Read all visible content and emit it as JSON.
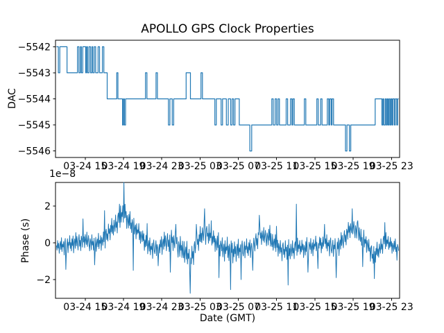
{
  "colors": {
    "line": "#1f77b4",
    "text": "#000000",
    "background": "#ffffff"
  },
  "chart_data": [
    {
      "type": "line",
      "draw_style": "steps-post",
      "title": "APOLLO GPS Clock Properties",
      "ylabel": "DAC",
      "xlabel": "",
      "x_unit": "hours since 03-24 00:00 GMT",
      "xlim": [
        11.9,
        47.85
      ],
      "ylim": [
        -5546.25,
        -5541.75
      ],
      "grid": false,
      "legend": false,
      "y_ticks": [
        -5542,
        -5543,
        -5544,
        -5545,
        -5546
      ],
      "y_ticklabels": [
        "−5542",
        "−5543",
        "−5544",
        "−5545",
        "−5546"
      ],
      "x_ticks": [
        [
          15,
          "03-24 15"
        ],
        [
          19,
          "03-24 19"
        ],
        [
          23,
          "03-24 23"
        ],
        [
          27,
          "03-25 03"
        ],
        [
          31,
          "03-25 07"
        ],
        [
          35,
          "03-25 11"
        ],
        [
          39,
          "03-25 15"
        ],
        [
          43,
          "03-25 19"
        ],
        [
          47,
          "03-25 23"
        ]
      ],
      "x_end": 47.75,
      "steps": [
        [
          12.0,
          -5542
        ],
        [
          12.2,
          -5543
        ],
        [
          12.35,
          -5542
        ],
        [
          13.1,
          -5543
        ],
        [
          14.2,
          -5542
        ],
        [
          14.35,
          -5543
        ],
        [
          14.5,
          -5542
        ],
        [
          14.6,
          -5543
        ],
        [
          14.75,
          -5542
        ],
        [
          15.05,
          -5543
        ],
        [
          15.15,
          -5542
        ],
        [
          15.25,
          -5543
        ],
        [
          15.4,
          -5542
        ],
        [
          15.55,
          -5543
        ],
        [
          15.7,
          -5542
        ],
        [
          15.8,
          -5543
        ],
        [
          15.95,
          -5542
        ],
        [
          16.1,
          -5543
        ],
        [
          16.35,
          -5542
        ],
        [
          16.5,
          -5543
        ],
        [
          16.8,
          -5542
        ],
        [
          16.95,
          -5543
        ],
        [
          17.3,
          -5544
        ],
        [
          18.3,
          -5543
        ],
        [
          18.42,
          -5544
        ],
        [
          18.9,
          -5545
        ],
        [
          19.0,
          -5544
        ],
        [
          19.1,
          -5545
        ],
        [
          19.22,
          -5544
        ],
        [
          21.3,
          -5543
        ],
        [
          21.45,
          -5544
        ],
        [
          22.4,
          -5543
        ],
        [
          22.55,
          -5544
        ],
        [
          23.7,
          -5545
        ],
        [
          23.85,
          -5544
        ],
        [
          24.1,
          -5545
        ],
        [
          24.25,
          -5544
        ],
        [
          25.55,
          -5543
        ],
        [
          26.0,
          -5544
        ],
        [
          27.1,
          -5543
        ],
        [
          27.25,
          -5544
        ],
        [
          28.55,
          -5545
        ],
        [
          28.7,
          -5544
        ],
        [
          29.2,
          -5545
        ],
        [
          29.35,
          -5544
        ],
        [
          29.75,
          -5545
        ],
        [
          29.95,
          -5544
        ],
        [
          30.2,
          -5545
        ],
        [
          30.35,
          -5544
        ],
        [
          30.5,
          -5545
        ],
        [
          30.65,
          -5544
        ],
        [
          31.1,
          -5545
        ],
        [
          32.2,
          -5546
        ],
        [
          32.4,
          -5545
        ],
        [
          34.5,
          -5544
        ],
        [
          34.65,
          -5545
        ],
        [
          34.85,
          -5544
        ],
        [
          35.0,
          -5545
        ],
        [
          35.15,
          -5544
        ],
        [
          35.3,
          -5545
        ],
        [
          36.0,
          -5544
        ],
        [
          36.15,
          -5545
        ],
        [
          36.45,
          -5544
        ],
        [
          36.6,
          -5545
        ],
        [
          36.7,
          -5544
        ],
        [
          36.85,
          -5545
        ],
        [
          37.9,
          -5544
        ],
        [
          38.05,
          -5545
        ],
        [
          39.2,
          -5544
        ],
        [
          39.35,
          -5545
        ],
        [
          39.6,
          -5544
        ],
        [
          39.75,
          -5545
        ],
        [
          40.3,
          -5544
        ],
        [
          40.45,
          -5545
        ],
        [
          40.55,
          -5544
        ],
        [
          40.7,
          -5545
        ],
        [
          40.8,
          -5544
        ],
        [
          40.95,
          -5545
        ],
        [
          42.2,
          -5546
        ],
        [
          42.35,
          -5545
        ],
        [
          42.6,
          -5546
        ],
        [
          42.75,
          -5545
        ],
        [
          45.3,
          -5544
        ],
        [
          46.0,
          -5545
        ],
        [
          46.1,
          -5544
        ],
        [
          46.2,
          -5545
        ],
        [
          46.35,
          -5544
        ],
        [
          46.45,
          -5545
        ],
        [
          46.55,
          -5544
        ],
        [
          46.65,
          -5545
        ],
        [
          46.75,
          -5544
        ],
        [
          46.85,
          -5545
        ],
        [
          46.95,
          -5544
        ],
        [
          47.05,
          -5545
        ],
        [
          47.15,
          -5544
        ],
        [
          47.3,
          -5545
        ],
        [
          47.4,
          -5544
        ],
        [
          47.55,
          -5545
        ],
        [
          47.65,
          -5544
        ],
        [
          47.75,
          -5544
        ]
      ]
    },
    {
      "type": "line",
      "ylabel": "Phase (s)",
      "xlabel": "Date (GMT)",
      "offset_text": "1e−8",
      "y_scale": "1e-8 s",
      "xlim": [
        11.9,
        47.85
      ],
      "ylim": [
        -3.02,
        3.28
      ],
      "grid": false,
      "legend": false,
      "y_ticks": [
        -2,
        0,
        2
      ],
      "y_ticklabels": [
        "−2",
        "0",
        "2"
      ],
      "x_ticks": [
        [
          15,
          "03-24 15"
        ],
        [
          19,
          "03-24 19"
        ],
        [
          23,
          "03-24 23"
        ],
        [
          27,
          "03-25 03"
        ],
        [
          31,
          "03-25 07"
        ],
        [
          35,
          "03-25 11"
        ],
        [
          39,
          "03-25 15"
        ],
        [
          43,
          "03-25 19"
        ],
        [
          47,
          "03-25 23"
        ]
      ],
      "x_start": 12.0,
      "x_end": 47.75,
      "n": 620,
      "envelope": [
        [
          12.0,
          -0.2,
          0.45
        ],
        [
          13.0,
          -0.15,
          0.55
        ],
        [
          14.0,
          0.0,
          0.6
        ],
        [
          15.0,
          0.15,
          0.6
        ],
        [
          16.0,
          -0.15,
          0.55
        ],
        [
          16.8,
          0.1,
          0.6
        ],
        [
          17.5,
          0.55,
          0.65
        ],
        [
          18.2,
          1.0,
          0.7
        ],
        [
          18.8,
          1.45,
          0.75
        ],
        [
          19.1,
          1.6,
          0.8
        ],
        [
          19.5,
          1.15,
          0.7
        ],
        [
          20.2,
          0.8,
          0.6
        ],
        [
          21.0,
          0.25,
          0.6
        ],
        [
          21.8,
          -0.3,
          0.6
        ],
        [
          22.5,
          -0.25,
          0.6
        ],
        [
          23.3,
          0.0,
          0.65
        ],
        [
          24.0,
          0.15,
          0.7
        ],
        [
          24.8,
          -0.25,
          0.75
        ],
        [
          25.5,
          -0.6,
          0.8
        ],
        [
          26.0,
          -0.9,
          0.8
        ],
        [
          26.5,
          -0.3,
          0.7
        ],
        [
          27.2,
          0.45,
          0.7
        ],
        [
          27.8,
          0.5,
          0.7
        ],
        [
          28.5,
          0.1,
          0.7
        ],
        [
          29.2,
          -0.3,
          0.75
        ],
        [
          30.0,
          -0.4,
          0.8
        ],
        [
          30.8,
          -0.45,
          0.7
        ],
        [
          31.6,
          -0.35,
          0.65
        ],
        [
          32.4,
          -0.25,
          0.6
        ],
        [
          33.2,
          0.35,
          0.65
        ],
        [
          34.0,
          0.3,
          0.6
        ],
        [
          34.8,
          -0.1,
          0.6
        ],
        [
          35.6,
          -0.4,
          0.65
        ],
        [
          36.4,
          -0.45,
          0.7
        ],
        [
          37.2,
          -0.25,
          0.6
        ],
        [
          38.0,
          -0.35,
          0.65
        ],
        [
          38.8,
          -0.2,
          0.6
        ],
        [
          39.6,
          -0.05,
          0.55
        ],
        [
          40.4,
          -0.1,
          0.6
        ],
        [
          41.2,
          -0.35,
          0.65
        ],
        [
          41.9,
          0.1,
          0.6
        ],
        [
          42.6,
          0.7,
          0.65
        ],
        [
          43.1,
          0.8,
          0.6
        ],
        [
          43.8,
          0.3,
          0.6
        ],
        [
          44.5,
          -0.1,
          0.6
        ],
        [
          45.1,
          -0.75,
          0.65
        ],
        [
          45.7,
          -0.4,
          0.6
        ],
        [
          46.3,
          0.1,
          0.6
        ],
        [
          47.0,
          -0.15,
          0.55
        ],
        [
          47.75,
          -0.35,
          0.45
        ]
      ],
      "noise": [
        0.12,
        -0.45,
        0.68,
        -0.22,
        0.35,
        -0.81,
        0.05,
        0.52,
        -0.37,
        0.9,
        -0.6,
        0.18,
        -0.12,
        0.44,
        -0.95,
        0.3,
        0.72,
        -0.28,
        -0.55,
        0.08,
        0.62,
        -0.75,
        0.25,
        -0.05,
        0.85,
        -0.4,
        0.15,
        -0.65,
        0.48,
        -0.18,
        0.7,
        -0.88,
        0.02,
        0.38,
        -0.5,
        0.92,
        -0.3,
        0.55,
        -0.1,
        -0.72,
        0.28,
        0.65,
        -0.42,
        0.1,
        -0.85,
        0.45,
        0.2,
        -0.58,
        0.78,
        -0.15,
        0.32,
        -0.68,
        0.5,
        -0.02,
        -0.35,
        0.82,
        -0.48,
        0.08,
        0.6,
        -0.25,
        -0.78,
        0.4,
        0.15,
        -0.6,
        0.88,
        -0.08,
        0.3,
        -0.52,
        0.68,
        -0.2,
        -0.42,
        0.75,
        -0.65,
        0.12,
        0.48,
        -0.3,
        0.95,
        -0.55,
        0.22,
        -0.1,
        0.58,
        -0.8,
        0.35,
        0.05,
        -0.45,
        0.7,
        -0.25,
        0.15,
        -0.92,
        0.42,
        0.62,
        -0.35,
        0.1,
        -0.58,
        0.8,
        -0.05,
        0.28,
        -0.7,
        0.45,
        -0.15,
        0.9,
        -0.38,
        0.2,
        -0.62,
        0.52,
        0.02,
        -0.48,
        0.75,
        -0.28,
        0.1,
        -0.82,
        0.38,
        0.58,
        -0.2,
        0.05,
        -0.68,
        0.85,
        -0.4,
        0.25,
        -0.08,
        0.65,
        -0.55,
        0.18,
        -0.32,
        0.72,
        -0.12,
        0.4,
        -0.75,
        0.3,
        0.08,
        -0.5,
        0.62,
        -0.22,
        0.95,
        -0.42,
        0.12,
        -0.65,
        0.5,
        0.25,
        -0.18,
        0.78,
        -0.58,
        0.02,
        0.35,
        -0.85,
        0.6,
        -0.3,
        0.18,
        -0.05,
        0.88,
        -0.52,
        0.28,
        -0.72,
        0.42,
        0.1,
        -0.38,
        0.68,
        -0.15,
        0.55,
        -0.9
      ],
      "spikes": [
        [
          13.0,
          -1.45
        ],
        [
          14.8,
          1.3
        ],
        [
          16.0,
          -1.2
        ],
        [
          17.0,
          1.75
        ],
        [
          18.6,
          2.1
        ],
        [
          19.05,
          3.28
        ],
        [
          20.0,
          -1.5
        ],
        [
          21.5,
          1.05
        ],
        [
          22.6,
          -1.25
        ],
        [
          23.9,
          -1.6
        ],
        [
          24.5,
          1.0
        ],
        [
          25.95,
          -2.75
        ],
        [
          26.6,
          1.0
        ],
        [
          27.5,
          1.85
        ],
        [
          28.2,
          1.2
        ],
        [
          29.0,
          -1.9
        ],
        [
          30.2,
          -2.55
        ],
        [
          31.3,
          -2.0
        ],
        [
          32.5,
          -1.5
        ],
        [
          33.2,
          1.5
        ],
        [
          34.3,
          0.95
        ],
        [
          35.0,
          0.9
        ],
        [
          36.2,
          -2.3
        ],
        [
          37.05,
          2.1
        ],
        [
          38.3,
          -1.6
        ],
        [
          39.3,
          -1.4
        ],
        [
          40.0,
          1.0
        ],
        [
          41.2,
          -1.9
        ],
        [
          42.9,
          1.85
        ],
        [
          43.5,
          1.2
        ],
        [
          44.0,
          -1.3
        ],
        [
          45.2,
          -1.95
        ],
        [
          46.3,
          1.1
        ],
        [
          47.6,
          -0.95
        ]
      ]
    }
  ]
}
